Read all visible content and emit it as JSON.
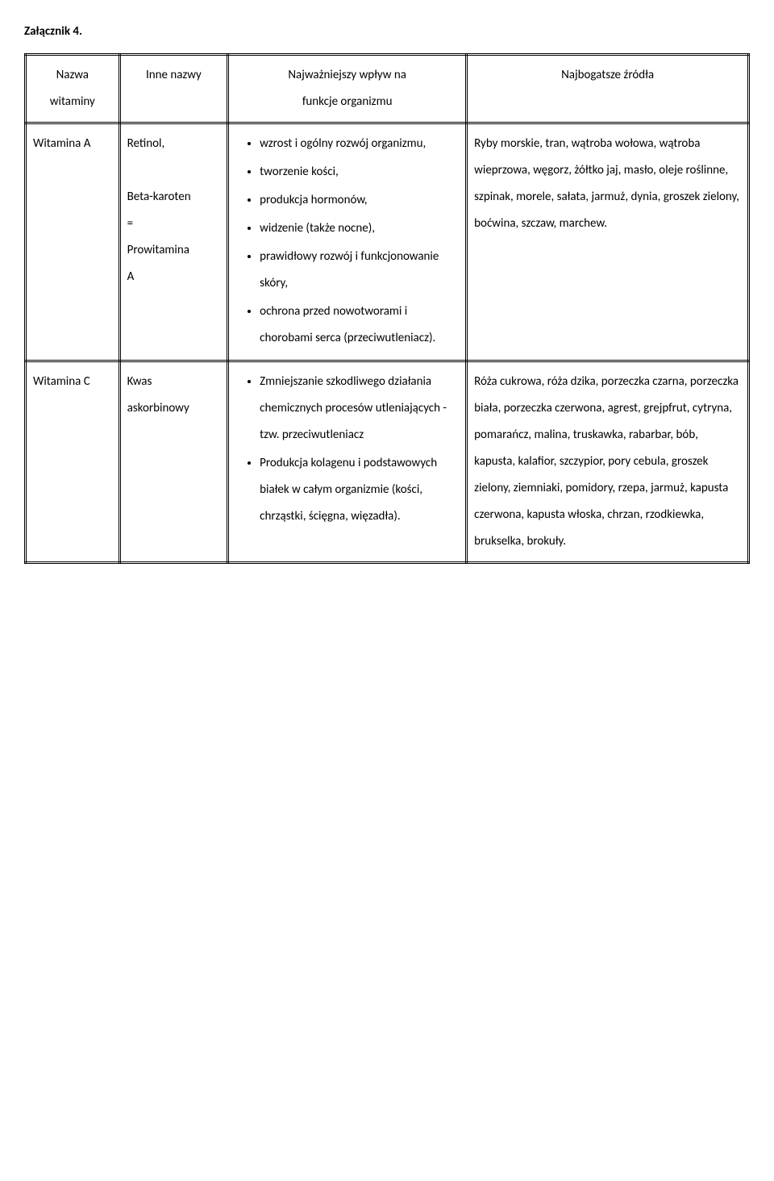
{
  "attachment_title": "Załącznik 4.",
  "headers": {
    "col1": "Nazwa",
    "col1b": "witaminy",
    "col2": "Inne nazwy",
    "col3": "Najważniejszy wpływ na",
    "col3b": "funkcje organizmu",
    "col4": "Najbogatsze źródła"
  },
  "rows": [
    {
      "name": "Witamina A",
      "other_names": [
        "Retinol,",
        "",
        "Beta-karoten",
        "=",
        "Prowitamina",
        "A"
      ],
      "effects": [
        "wzrost i ogólny rozwój organizmu,",
        "tworzenie kości,",
        "produkcja hormonów,",
        "widzenie (także nocne),",
        "prawidłowy rozwój i funkcjonowanie skóry,",
        "ochrona przed nowotworami i chorobami serca (przeciwutleniacz)."
      ],
      "sources": "Ryby morskie, tran, wątroba wołowa, wątroba wieprzowa, węgorz, żółtko jaj, masło, oleje roślinne, szpinak, morele, sałata, jarmuż, dynia, groszek zielony, boćwina, szczaw, marchew."
    },
    {
      "name": "Witamina C",
      "other_names": [
        "Kwas",
        "askorbinowy"
      ],
      "effects": [
        "Zmniejszanie szkodliwego działania chemicznych procesów utleniających - tzw. przeciwutleniacz",
        "Produkcja kolagenu i podstawowych białek w całym organizmie (kości, chrząstki, ścięgna, więzadła)."
      ],
      "sources": "Róża cukrowa, róża dzika, porzeczka czarna, porzeczka biała, porzeczka czerwona, agrest, grejpfrut, cytryna, pomarańcz, malina, truskawka, rabarbar, bób, kapusta, kalafior, szczypior, pory cebula, groszek zielony, ziemniaki, pomidory, rzepa, jarmuż, kapusta czerwona, kapusta włoska, chrzan, rzodkiewka, brukselka, brokuły."
    }
  ]
}
